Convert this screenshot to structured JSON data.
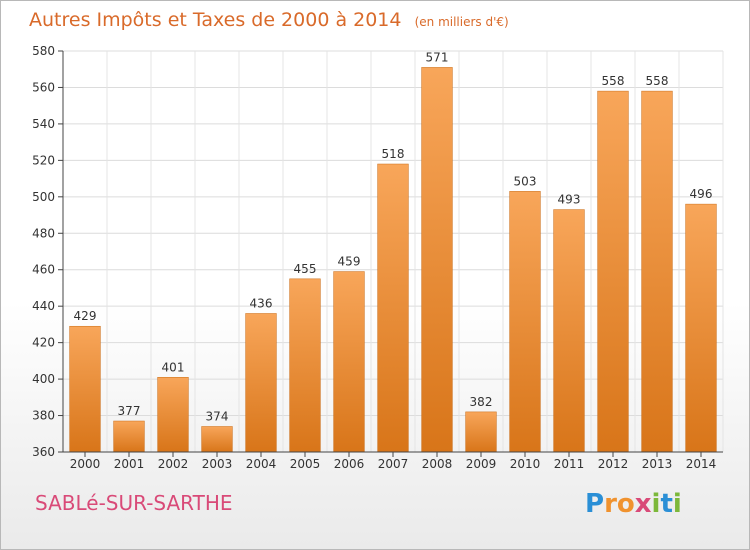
{
  "chart_data": {
    "type": "bar",
    "title": "Autres Impôts et Taxes de 2000 à 2014",
    "subtitle": "(en milliers d'€)",
    "categories": [
      "2000",
      "2001",
      "2002",
      "2003",
      "2004",
      "2005",
      "2006",
      "2007",
      "2008",
      "2009",
      "2010",
      "2011",
      "2012",
      "2013",
      "2014"
    ],
    "values": [
      429,
      377,
      401,
      374,
      436,
      455,
      459,
      518,
      571,
      382,
      503,
      493,
      558,
      558,
      496
    ],
    "data_labels": [
      "429",
      "377",
      "401",
      "374",
      "436",
      "455",
      "459",
      "518",
      "571",
      "382",
      "503",
      "493",
      "558",
      "558",
      "496"
    ],
    "ylim": [
      360,
      580
    ],
    "yticks": [
      360,
      380,
      400,
      420,
      440,
      460,
      480,
      500,
      520,
      540,
      560,
      580
    ],
    "ytick_labels": [
      "360",
      "380",
      "400",
      "420",
      "440",
      "460",
      "480",
      "500",
      "520",
      "540",
      "560",
      "580"
    ],
    "grid": true,
    "bar_color": "#f0922e",
    "legend": "none"
  },
  "footer": {
    "commune": "SABLé-SUR-SARTHE",
    "logo_letters": [
      "P",
      "r",
      "o",
      "x",
      "i",
      "t",
      "i"
    ],
    "logo_colors": [
      "#2a8fd6",
      "#f0922e",
      "#f0922e",
      "#d94a78",
      "#7cb83a",
      "#2a8fd6",
      "#7cb83a"
    ]
  }
}
